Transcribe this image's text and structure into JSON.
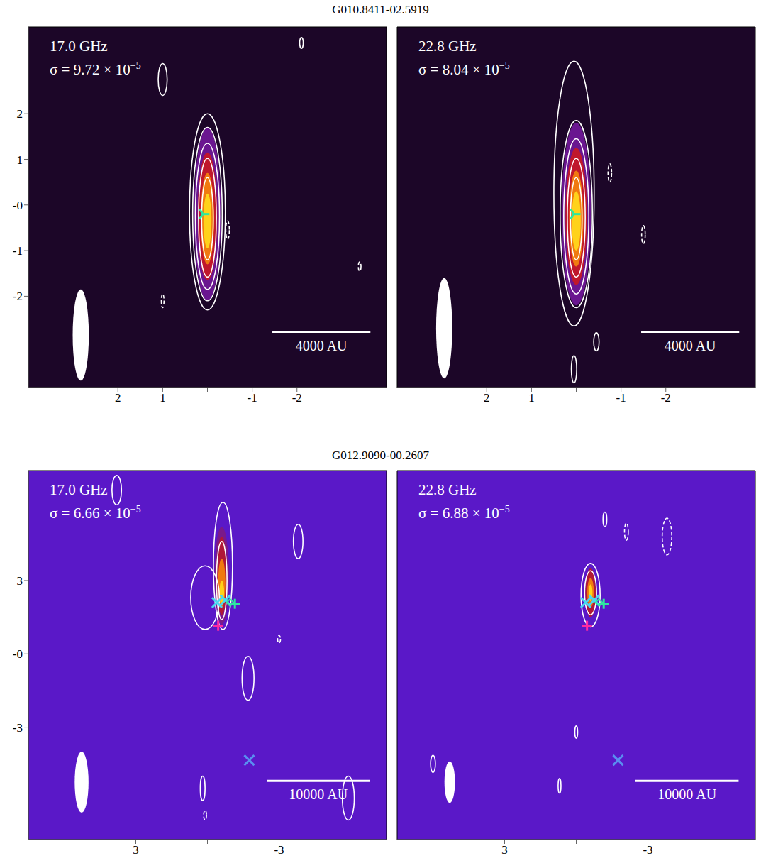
{
  "chart_data": [
    {
      "type": "contour",
      "title": "G010.8411-02.5919",
      "frequency": "17.0 GHz",
      "sigma_text": "σ = 9.72 × 10",
      "sigma_exponent": "−5",
      "color": "#1c0628",
      "xlim": [
        4,
        -4
      ],
      "ylim": [
        -4,
        3.9
      ],
      "xticks": [
        2,
        1,
        0,
        -1,
        -2
      ],
      "yticks": [
        2,
        1,
        {
          "value": 0,
          "label": "-0"
        },
        -1,
        -2
      ],
      "tick_labels": true,
      "emission": [
        {
          "x": 0.0,
          "y": -0.2,
          "rx": 0.3,
          "ry": 1.9,
          "color": "#6a1690"
        },
        {
          "x": 0.0,
          "y": -0.25,
          "rx": 0.22,
          "ry": 1.4,
          "color": "#c0182c"
        },
        {
          "x": 0.0,
          "y": -0.3,
          "rx": 0.15,
          "ry": 1.0,
          "color": "#f07a10"
        },
        {
          "x": 0.0,
          "y": -0.35,
          "rx": 0.09,
          "ry": 0.6,
          "color": "#ffd21a"
        }
      ],
      "contours": [
        {
          "x": 0.0,
          "y": -0.15,
          "rx": 0.4,
          "ry": 2.15
        },
        {
          "x": 0.0,
          "y": -0.2,
          "rx": 0.33,
          "ry": 1.9
        },
        {
          "x": 0.0,
          "y": -0.25,
          "rx": 0.27,
          "ry": 1.6
        },
        {
          "x": 0.0,
          "y": -0.28,
          "rx": 0.2,
          "ry": 1.3
        },
        {
          "x": 0.0,
          "y": -0.3,
          "rx": 0.13,
          "ry": 0.9
        },
        {
          "x": 1.0,
          "y": 2.75,
          "rx": 0.1,
          "ry": 0.35
        },
        {
          "x": -2.1,
          "y": 3.55,
          "rx": 0.04,
          "ry": 0.12
        }
      ],
      "negative_contours": [
        {
          "x": -0.45,
          "y": -0.55,
          "rx": 0.04,
          "ry": 0.2
        },
        {
          "x": 1.0,
          "y": -2.1,
          "rx": 0.03,
          "ry": 0.15
        },
        {
          "x": -3.4,
          "y": -1.35,
          "rx": 0.03,
          "ry": 0.1
        }
      ],
      "beam": {
        "x": 2.83,
        "y": -2.85,
        "rx": 0.18,
        "ry": 1.0
      },
      "scale_bar": {
        "x1": -1.45,
        "x2": -3.64,
        "y": -2.78,
        "label": "4000 AU"
      },
      "markers": [
        {
          "x": 0.1,
          "y": -0.2,
          "color": "#2ee8a0",
          "marker": "tri"
        }
      ]
    },
    {
      "type": "contour",
      "frequency": "22.8 GHz",
      "sigma_text": "σ = 8.04 × 10",
      "sigma_exponent": "−5",
      "color": "#1c0628",
      "xlim": [
        4,
        -4
      ],
      "ylim": [
        -4,
        3.9
      ],
      "xticks": [
        2,
        1,
        0,
        -1,
        -2
      ],
      "tick_labels": "x",
      "emission": [
        {
          "x": 0.0,
          "y": -0.2,
          "rx": 0.33,
          "ry": 2.0,
          "color": "#6a1690"
        },
        {
          "x": 0.0,
          "y": -0.25,
          "rx": 0.24,
          "ry": 1.5,
          "color": "#c0182c"
        },
        {
          "x": 0.0,
          "y": -0.3,
          "rx": 0.16,
          "ry": 1.05,
          "color": "#f07a10"
        },
        {
          "x": 0.0,
          "y": -0.35,
          "rx": 0.1,
          "ry": 0.65,
          "color": "#ffd21a"
        }
      ],
      "contours": [
        {
          "x": 0.05,
          "y": 0.25,
          "rx": 0.45,
          "ry": 2.9
        },
        {
          "x": 0.0,
          "y": -0.2,
          "rx": 0.36,
          "ry": 2.05
        },
        {
          "x": 0.0,
          "y": -0.25,
          "rx": 0.28,
          "ry": 1.7
        },
        {
          "x": 0.0,
          "y": -0.28,
          "rx": 0.2,
          "ry": 1.3
        },
        {
          "x": 0.0,
          "y": -0.3,
          "rx": 0.13,
          "ry": 0.9
        },
        {
          "x": -0.45,
          "y": -3.0,
          "rx": 0.06,
          "ry": 0.2
        },
        {
          "x": 0.05,
          "y": -3.6,
          "rx": 0.06,
          "ry": 0.3
        }
      ],
      "negative_contours": [
        {
          "x": -0.75,
          "y": 0.7,
          "rx": 0.04,
          "ry": 0.2
        },
        {
          "x": -1.5,
          "y": -0.65,
          "rx": 0.04,
          "ry": 0.2
        }
      ],
      "beam": {
        "x": 2.95,
        "y": -2.7,
        "rx": 0.18,
        "ry": 1.1
      },
      "scale_bar": {
        "x1": -1.45,
        "x2": -3.64,
        "y": -2.78,
        "label": "4000 AU"
      },
      "markers": [
        {
          "x": 0.05,
          "y": -0.2,
          "color": "#2ee8a0",
          "marker": "tri"
        }
      ]
    },
    {
      "type": "contour",
      "title": "G012.9090-00.2607",
      "frequency": "17.0 GHz",
      "sigma_text": "σ = 6.66 × 10",
      "sigma_exponent": "−5",
      "color": "#5a18c8",
      "xlim": [
        7.5,
        -7.5
      ],
      "ylim": [
        -7.6,
        7.5
      ],
      "xticks": [
        3,
        0,
        -3
      ],
      "yticks": [
        3,
        {
          "value": 0,
          "label": "-0"
        },
        -3
      ],
      "tick_labels": true,
      "emission": [
        {
          "x": -0.6,
          "y": 3.2,
          "rx": 0.3,
          "ry": 2.0,
          "color": "#7a1a8a"
        },
        {
          "x": -0.6,
          "y": 3.2,
          "rx": 0.22,
          "ry": 1.6,
          "color": "#b01838"
        },
        {
          "x": -0.6,
          "y": 2.9,
          "rx": 0.15,
          "ry": 1.0,
          "color": "#f07a10"
        },
        {
          "x": -0.6,
          "y": 2.5,
          "rx": 0.1,
          "ry": 0.5,
          "color": "#ffd21a"
        }
      ],
      "contours": [
        {
          "x": -0.65,
          "y": 3.6,
          "rx": 0.4,
          "ry": 2.6
        },
        {
          "x": 0.1,
          "y": 2.3,
          "rx": 0.6,
          "ry": 1.3
        },
        {
          "x": -0.6,
          "y": 3.0,
          "rx": 0.22,
          "ry": 1.6
        },
        {
          "x": -3.8,
          "y": 4.6,
          "rx": 0.2,
          "ry": 0.7
        },
        {
          "x": -1.7,
          "y": -1.0,
          "rx": 0.25,
          "ry": 0.9
        },
        {
          "x": -5.9,
          "y": -5.9,
          "rx": 0.25,
          "ry": 0.9
        },
        {
          "x": 0.2,
          "y": -5.5,
          "rx": 0.1,
          "ry": 0.5
        },
        {
          "x": 3.8,
          "y": 6.7,
          "rx": 0.2,
          "ry": 0.6
        }
      ],
      "negative_contours": [
        {
          "x": -3.0,
          "y": 0.6,
          "rx": 0.06,
          "ry": 0.15
        },
        {
          "x": 0.1,
          "y": -6.6,
          "rx": 0.06,
          "ry": 0.2
        }
      ],
      "beam": {
        "x": 5.27,
        "y": -5.25,
        "rx": 0.29,
        "ry": 1.25
      },
      "scale_bar": {
        "x1": -2.48,
        "x2": -6.8,
        "y": -5.2,
        "label": "10000 AU"
      },
      "markers": [
        {
          "x": -0.4,
          "y": 2.1,
          "color": "#4ad8f0",
          "marker": "x"
        },
        {
          "x": -0.75,
          "y": 2.2,
          "color": "#4ad8f0",
          "marker": "x"
        },
        {
          "x": -0.95,
          "y": 2.1,
          "color": "#2ee8a0",
          "marker": "diamond"
        },
        {
          "x": -1.15,
          "y": 2.05,
          "color": "#2ee8a0",
          "marker": "plus"
        },
        {
          "x": -0.45,
          "y": 1.15,
          "color": "#ff2aa0",
          "marker": "plus"
        },
        {
          "x": -1.75,
          "y": -4.35,
          "color": "#5a8ef0",
          "marker": "x"
        }
      ]
    },
    {
      "type": "contour",
      "frequency": "22.8 GHz",
      "sigma_text": "σ = 6.88 × 10",
      "sigma_exponent": "−5",
      "color": "#5a18c8",
      "xlim": [
        7.5,
        -7.5
      ],
      "ylim": [
        -7.6,
        7.5
      ],
      "xticks": [
        3,
        0,
        -3
      ],
      "tick_labels": "x",
      "emission": [
        {
          "x": -0.6,
          "y": 2.5,
          "rx": 0.22,
          "ry": 1.0,
          "color": "#b01838"
        },
        {
          "x": -0.6,
          "y": 2.5,
          "rx": 0.14,
          "ry": 0.6,
          "color": "#f07a10"
        },
        {
          "x": -0.6,
          "y": 2.5,
          "rx": 0.08,
          "ry": 0.35,
          "color": "#ffd21a"
        }
      ],
      "contours": [
        {
          "x": -0.6,
          "y": 2.4,
          "rx": 0.4,
          "ry": 1.3
        },
        {
          "x": -0.6,
          "y": 2.5,
          "rx": 0.25,
          "ry": 0.9
        },
        {
          "x": 0.0,
          "y": -3.2,
          "rx": 0.06,
          "ry": 0.25
        },
        {
          "x": 6.0,
          "y": -4.5,
          "rx": 0.1,
          "ry": 0.35
        },
        {
          "x": 0.7,
          "y": -5.4,
          "rx": 0.06,
          "ry": 0.3
        },
        {
          "x": -1.2,
          "y": 5.5,
          "rx": 0.08,
          "ry": 0.3
        }
      ],
      "negative_contours": [
        {
          "x": -2.1,
          "y": 5.0,
          "rx": 0.08,
          "ry": 0.35
        },
        {
          "x": -3.8,
          "y": 4.8,
          "rx": 0.2,
          "ry": 0.75
        }
      ],
      "beam": {
        "x": 5.3,
        "y": -5.25,
        "rx": 0.22,
        "ry": 0.85
      },
      "scale_bar": {
        "x1": -2.48,
        "x2": -6.8,
        "y": -5.2,
        "label": "10000 AU"
      },
      "markers": [
        {
          "x": -0.4,
          "y": 2.1,
          "color": "#4ad8f0",
          "marker": "x"
        },
        {
          "x": -0.75,
          "y": 2.2,
          "color": "#4ad8f0",
          "marker": "x"
        },
        {
          "x": -0.95,
          "y": 2.1,
          "color": "#2ee8a0",
          "marker": "diamond"
        },
        {
          "x": -1.15,
          "y": 2.05,
          "color": "#2ee8a0",
          "marker": "plus"
        },
        {
          "x": -0.45,
          "y": 1.15,
          "color": "#ff2aa0",
          "marker": "plus"
        },
        {
          "x": -1.75,
          "y": -4.35,
          "color": "#5a8ef0",
          "marker": "x"
        }
      ]
    }
  ]
}
